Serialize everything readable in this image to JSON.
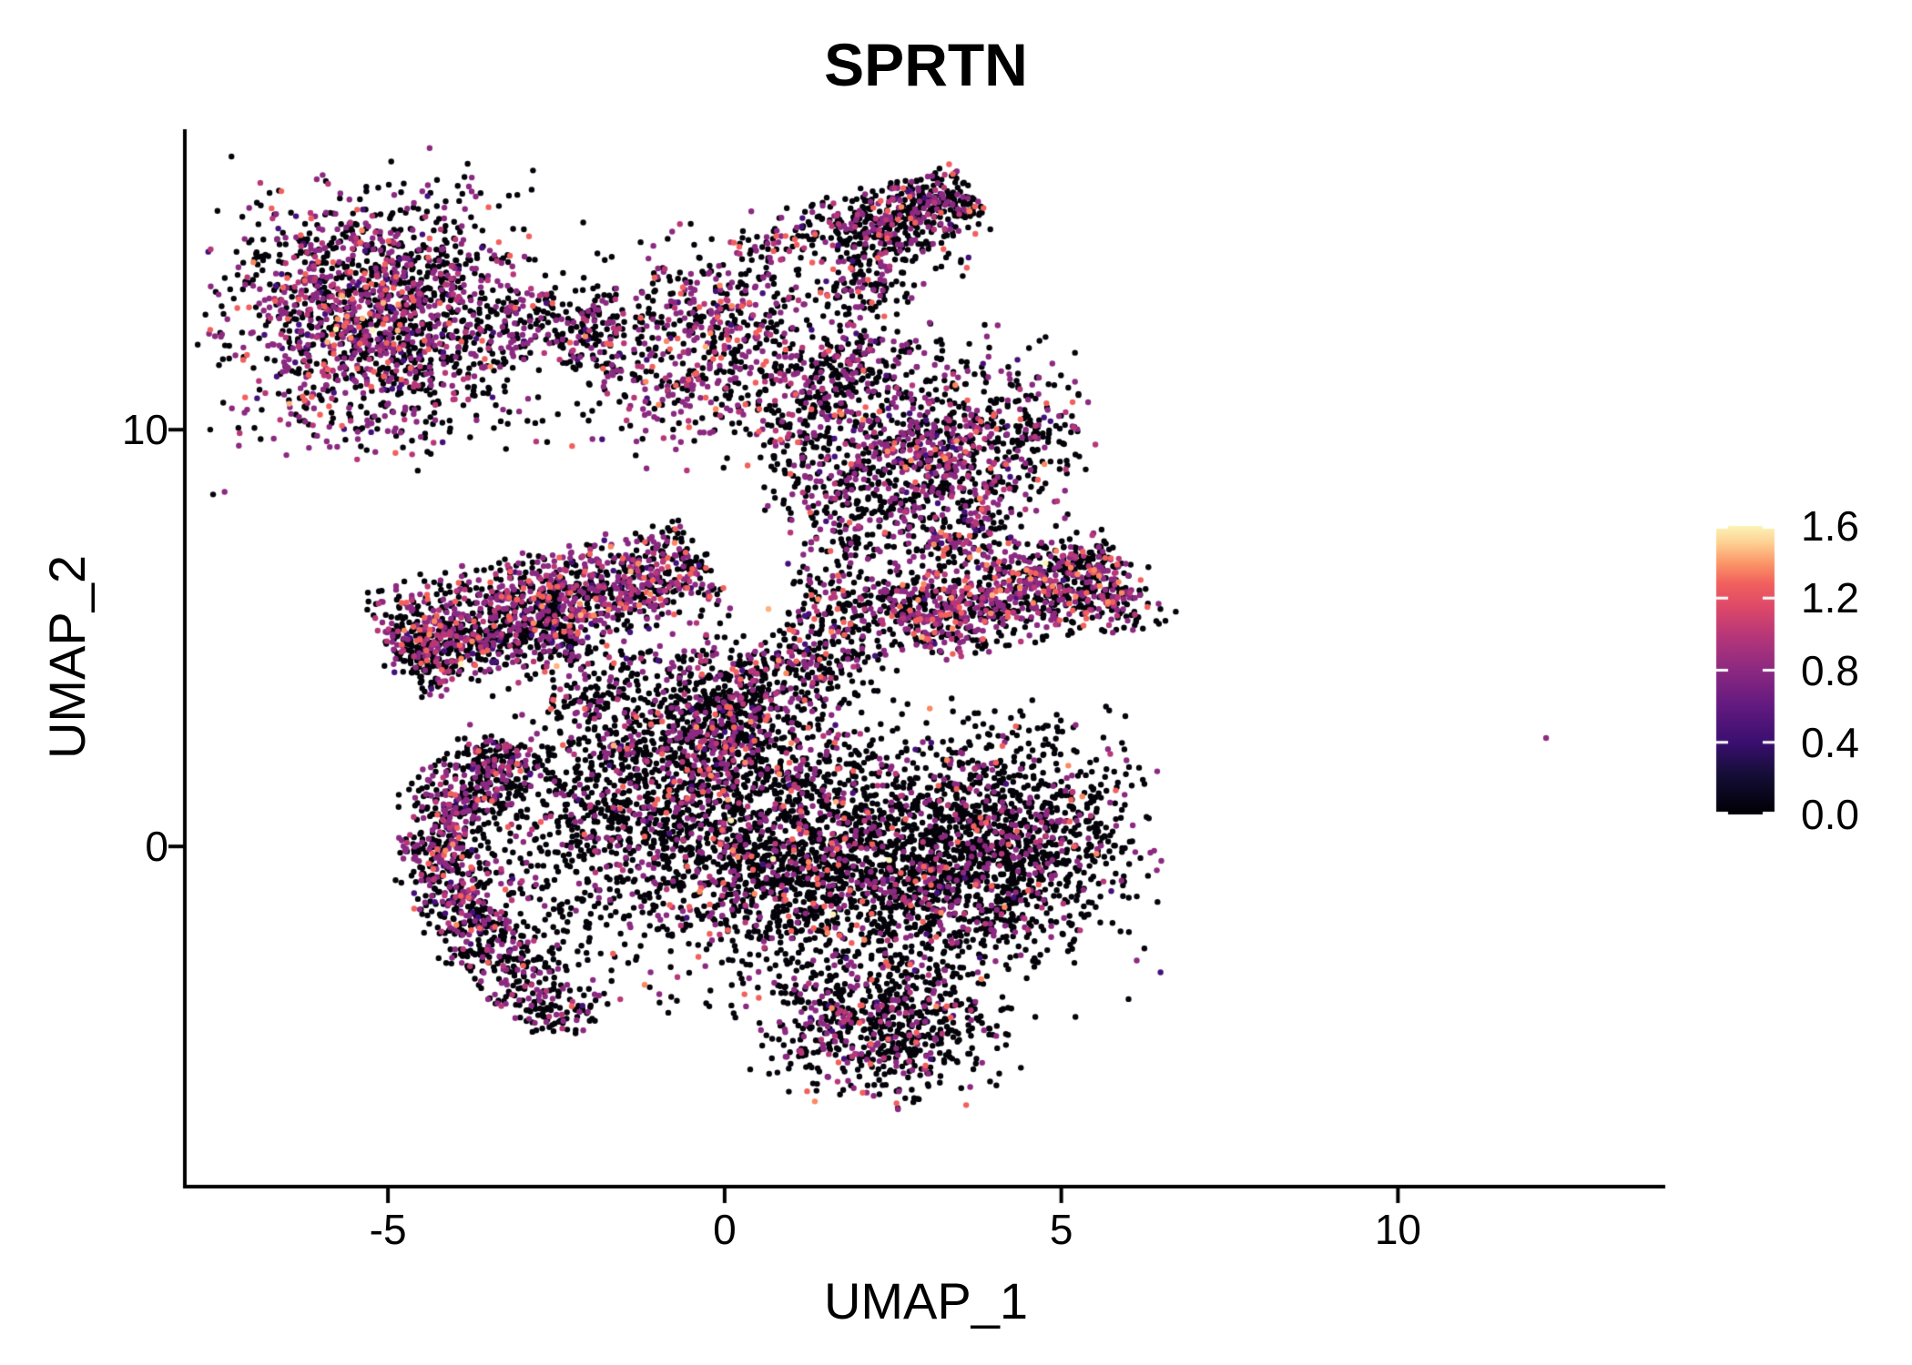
{
  "chart_data": {
    "type": "scatter",
    "title": "SPRTN",
    "xlabel": "UMAP_1",
    "ylabel": "UMAP_2",
    "xlim": [
      -7.99,
      13.97
    ],
    "ylim": [
      -8.12,
      17.21
    ],
    "grid": false,
    "x_ticks": [
      {
        "value": -5,
        "label": "-5"
      },
      {
        "value": 0,
        "label": "0"
      },
      {
        "value": 5,
        "label": "5"
      },
      {
        "value": 10,
        "label": "10"
      }
    ],
    "y_ticks": [
      {
        "value": 0,
        "label": "0"
      },
      {
        "value": 10,
        "label": "10"
      }
    ],
    "colorbar": {
      "position": "right",
      "min": 0.0,
      "max": 1.6,
      "ticks": [
        {
          "value": 1.6,
          "label": "1.6"
        },
        {
          "value": 1.2,
          "label": "1.2"
        },
        {
          "value": 0.8,
          "label": "0.8"
        },
        {
          "value": 0.4,
          "label": "0.4"
        },
        {
          "value": 0.0,
          "label": "0.0"
        }
      ],
      "gradient_stops": [
        {
          "t": 0.0,
          "hex": "#000004"
        },
        {
          "t": 0.14,
          "hex": "#150e38"
        },
        {
          "t": 0.25,
          "hex": "#3b0f70"
        },
        {
          "t": 0.38,
          "hex": "#641a80"
        },
        {
          "t": 0.5,
          "hex": "#8c2981"
        },
        {
          "t": 0.62,
          "hex": "#b73779"
        },
        {
          "t": 0.72,
          "hex": "#de4968"
        },
        {
          "t": 0.8,
          "hex": "#f1605d"
        },
        {
          "t": 0.87,
          "hex": "#fb9567"
        },
        {
          "t": 0.94,
          "hex": "#fecf92"
        },
        {
          "t": 1.0,
          "hex": "#fcf4b6"
        }
      ]
    },
    "palette": [
      {
        "name": "expression-0.0-black",
        "hex": "#05030a"
      },
      {
        "name": "expression-0.3-deep-purple",
        "hex": "#45107a"
      },
      {
        "name": "expression-0.6-purple",
        "hex": "#8c2981"
      },
      {
        "name": "expression-0.8-magenta",
        "hex": "#b73779"
      },
      {
        "name": "expression-1.0-salmon",
        "hex": "#f1605d"
      },
      {
        "name": "expression-1.2-orange",
        "hex": "#fb8861"
      },
      {
        "name": "expression-1.4-peach",
        "hex": "#feb27c"
      },
      {
        "name": "expression-1.6-pale-yellow",
        "hex": "#fbf2b4"
      }
    ],
    "point_radius_px": 3.2,
    "seed": 20,
    "clusters": [
      {
        "name": "topleft-main",
        "kind": "gauss",
        "cx": -5.15,
        "cy": 12.75,
        "sx": 1.05,
        "sy": 1.42,
        "n": 1500,
        "mix": [
          0.5,
          0.04,
          0.3,
          0.09,
          0.055,
          0.01,
          0.004,
          0.001
        ]
      },
      {
        "name": "topleft-halo",
        "kind": "gauss",
        "cx": -5.1,
        "cy": 12.7,
        "sx": 1.5,
        "sy": 1.9,
        "n": 130,
        "mix": [
          0.8,
          0.01,
          0.16,
          0.02,
          0.01,
          0,
          0,
          0
        ]
      },
      {
        "name": "bridge-left",
        "kind": "band",
        "x1": -3.35,
        "y1": 12.55,
        "x2": -1.55,
        "y2": 12.35,
        "w": 0.48,
        "n": 210,
        "mix": [
          0.62,
          0.02,
          0.26,
          0.06,
          0.03,
          0.01,
          0,
          0
        ]
      },
      {
        "name": "midtop-cluster",
        "kind": "gauss",
        "cx": -0.1,
        "cy": 12.1,
        "sx": 1.0,
        "sy": 1.32,
        "n": 720,
        "mix": [
          0.52,
          0.03,
          0.3,
          0.09,
          0.05,
          0.008,
          0.002,
          0
        ]
      },
      {
        "name": "strand-to-arrow",
        "kind": "band",
        "x1": 0.35,
        "y1": 14.2,
        "x2": 1.75,
        "y2": 14.95,
        "w": 0.33,
        "n": 85,
        "mix": [
          0.7,
          0.02,
          0.2,
          0.05,
          0.03,
          0,
          0,
          0
        ]
      },
      {
        "name": "top-arrow",
        "kind": "band",
        "x1": 1.75,
        "y1": 14.75,
        "x2": 3.65,
        "y2": 15.65,
        "w": 0.4,
        "n": 400,
        "mix": [
          0.66,
          0.02,
          0.22,
          0.06,
          0.035,
          0.005,
          0,
          0
        ]
      },
      {
        "name": "arrow-clump",
        "kind": "gauss",
        "cx": 2.1,
        "cy": 13.45,
        "sx": 0.34,
        "sy": 0.42,
        "n": 85,
        "mix": [
          0.7,
          0.02,
          0.2,
          0.05,
          0.03,
          0,
          0,
          0
        ]
      },
      {
        "name": "arrow-underscatter",
        "kind": "band",
        "x1": 1.7,
        "y1": 13.9,
        "x2": 3.3,
        "y2": 14.7,
        "w": 0.45,
        "n": 100,
        "mix": [
          0.75,
          0.02,
          0.15,
          0.05,
          0.03,
          0,
          0,
          0
        ]
      },
      {
        "name": "upper-mid-blob",
        "kind": "gauss",
        "cx": 2.9,
        "cy": 9.35,
        "sx": 1.0,
        "sy": 1.45,
        "n": 980,
        "mix": [
          0.6,
          0.04,
          0.24,
          0.08,
          0.035,
          0.005,
          0,
          0
        ]
      },
      {
        "name": "upper-mid-lobe",
        "kind": "gauss",
        "cx": 4.35,
        "cy": 9.9,
        "sx": 0.55,
        "sy": 0.75,
        "n": 170,
        "mix": [
          0.62,
          0.03,
          0.24,
          0.07,
          0.04,
          0,
          0,
          0
        ]
      },
      {
        "name": "midtop-connector",
        "kind": "band",
        "x1": 1.15,
        "y1": 10.6,
        "x2": 2.35,
        "y2": 12.3,
        "w": 0.42,
        "n": 150,
        "mix": [
          0.68,
          0.02,
          0.2,
          0.06,
          0.04,
          0,
          0,
          0
        ]
      },
      {
        "name": "left-band",
        "kind": "band",
        "x1": -5.0,
        "y1": 4.95,
        "x2": -0.3,
        "y2": 6.75,
        "w": 0.6,
        "n": 1250,
        "mix": [
          0.53,
          0.03,
          0.28,
          0.09,
          0.055,
          0.012,
          0.002,
          0.001
        ]
      },
      {
        "name": "left-band-lower",
        "kind": "band",
        "x1": -4.85,
        "y1": 4.25,
        "x2": -2.1,
        "y2": 5.15,
        "w": 0.38,
        "n": 260,
        "mix": [
          0.68,
          0.02,
          0.2,
          0.06,
          0.04,
          0,
          0,
          0
        ]
      },
      {
        "name": "band-gap-scatter",
        "kind": "rect",
        "x1": -2.6,
        "y1": 3.1,
        "x2": 0.6,
        "y2": 4.7,
        "n": 170,
        "mix": [
          0.78,
          0.01,
          0.16,
          0.03,
          0.02,
          0,
          0,
          0
        ]
      },
      {
        "name": "ne-connector",
        "kind": "band",
        "x1": -0.4,
        "y1": 2.3,
        "x2": 2.45,
        "y2": 6.2,
        "w": 0.55,
        "n": 640,
        "mix": [
          0.7,
          0.02,
          0.18,
          0.05,
          0.04,
          0.008,
          0.002,
          0
        ]
      },
      {
        "name": "right-band",
        "kind": "band",
        "x1": 2.7,
        "y1": 5.3,
        "x2": 5.95,
        "y2": 6.7,
        "w": 0.52,
        "n": 860,
        "mix": [
          0.53,
          0.02,
          0.26,
          0.1,
          0.06,
          0.025,
          0.004,
          0.001
        ]
      },
      {
        "name": "right-band-tip",
        "kind": "gauss",
        "cx": 3.55,
        "cy": 7.35,
        "sx": 0.35,
        "sy": 0.45,
        "n": 90,
        "mix": [
          0.5,
          0.02,
          0.24,
          0.1,
          0.1,
          0.03,
          0.01,
          0
        ]
      },
      {
        "name": "right-band-tail",
        "kind": "band",
        "x1": 5.7,
        "y1": 6.3,
        "x2": 6.2,
        "y2": 5.2,
        "w": 0.3,
        "n": 55,
        "mix": [
          0.7,
          0,
          0.2,
          0.05,
          0.05,
          0,
          0,
          0
        ]
      },
      {
        "name": "blob-strand",
        "kind": "band",
        "x1": 0.95,
        "y1": 10.4,
        "x2": 1.95,
        "y2": 7.0,
        "w": 0.4,
        "n": 150,
        "mix": [
          0.72,
          0.01,
          0.18,
          0.05,
          0.04,
          0,
          0,
          0
        ]
      },
      {
        "name": "central-west",
        "kind": "gauss",
        "cx": -0.6,
        "cy": 1.6,
        "sx": 1.35,
        "sy": 1.5,
        "n": 1450,
        "mix": [
          0.76,
          0.015,
          0.15,
          0.04,
          0.03,
          0.004,
          0.001,
          0
        ]
      },
      {
        "name": "central-core",
        "kind": "gauss",
        "cx": 1.7,
        "cy": -0.6,
        "sx": 1.8,
        "sy": 1.5,
        "n": 2250,
        "mix": [
          0.79,
          0.01,
          0.13,
          0.035,
          0.028,
          0.005,
          0.001,
          0.001
        ]
      },
      {
        "name": "central-east",
        "kind": "gauss",
        "cx": 4.2,
        "cy": 0.2,
        "sx": 1.0,
        "sy": 1.4,
        "n": 950,
        "mix": [
          0.8,
          0.01,
          0.13,
          0.03,
          0.025,
          0.005,
          0,
          0
        ]
      },
      {
        "name": "bottom-taper",
        "kind": "gauss",
        "cx": 2.4,
        "cy": -4.4,
        "sx": 0.85,
        "sy": 0.8,
        "n": 640,
        "mix": [
          0.74,
          0.015,
          0.17,
          0.045,
          0.025,
          0.005,
          0,
          0
        ]
      },
      {
        "name": "crescent-upper",
        "kind": "band",
        "x1": -3.1,
        "y1": 2.4,
        "x2": -4.35,
        "y2": 0.5,
        "w": 0.36,
        "n": 370,
        "mix": [
          0.58,
          0.03,
          0.27,
          0.08,
          0.035,
          0.005,
          0,
          0
        ]
      },
      {
        "name": "crescent-mid",
        "kind": "band",
        "x1": -4.35,
        "y1": 0.4,
        "x2": -3.75,
        "y2": -2.1,
        "w": 0.34,
        "n": 330,
        "mix": [
          0.58,
          0.03,
          0.27,
          0.08,
          0.035,
          0.005,
          0,
          0
        ]
      },
      {
        "name": "crescent-lower",
        "kind": "band",
        "x1": -3.7,
        "y1": -2.2,
        "x2": -2.15,
        "y2": -4.35,
        "w": 0.38,
        "n": 250,
        "mix": [
          0.68,
          0.02,
          0.22,
          0.05,
          0.03,
          0,
          0,
          0
        ]
      },
      {
        "name": "crescent-inner-scatter",
        "kind": "rect",
        "x1": -3.9,
        "y1": -2.9,
        "x2": -1.9,
        "y2": 1.6,
        "n": 190,
        "mix": [
          0.8,
          0.01,
          0.15,
          0.03,
          0.01,
          0,
          0,
          0
        ]
      },
      {
        "name": "upper-sparse-scatter",
        "kind": "rect",
        "x1": -6.5,
        "y1": 9.7,
        "x2": -0.5,
        "y2": 11.3,
        "n": 60,
        "mix": [
          0.7,
          0.02,
          0.22,
          0.04,
          0.02,
          0,
          0,
          0
        ]
      }
    ],
    "outlier_point": {
      "x": 12.2,
      "y": 2.6,
      "palette_index": 2
    }
  }
}
